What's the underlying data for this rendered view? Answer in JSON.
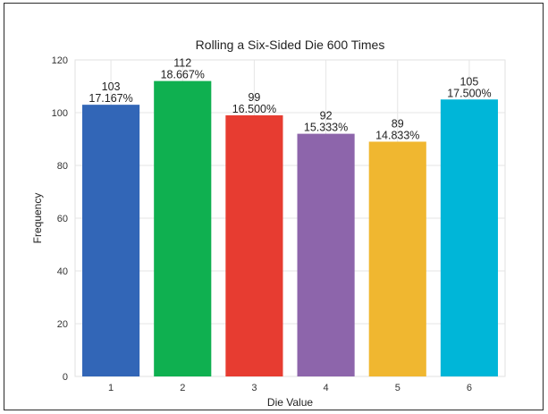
{
  "chart_data": {
    "type": "bar",
    "title": "Rolling a Six-Sided Die 600 Times",
    "xlabel": "Die Value",
    "ylabel": "Frequency",
    "categories": [
      "1",
      "2",
      "3",
      "4",
      "5",
      "6"
    ],
    "values": [
      103,
      112,
      99,
      92,
      89,
      105
    ],
    "value_labels": [
      "103",
      "112",
      "99",
      "92",
      "89",
      "105"
    ],
    "percent_labels": [
      "17.167%",
      "18.667%",
      "16.500%",
      "15.333%",
      "14.833%",
      "17.500%"
    ],
    "colors": [
      "#3266b7",
      "#0fb050",
      "#e73c31",
      "#8d65ab",
      "#f0b730",
      "#00b6d8"
    ],
    "ylim": [
      0,
      120
    ],
    "yticks": [
      0,
      20,
      40,
      60,
      80,
      100,
      120
    ],
    "grid": true,
    "legend": "none"
  }
}
